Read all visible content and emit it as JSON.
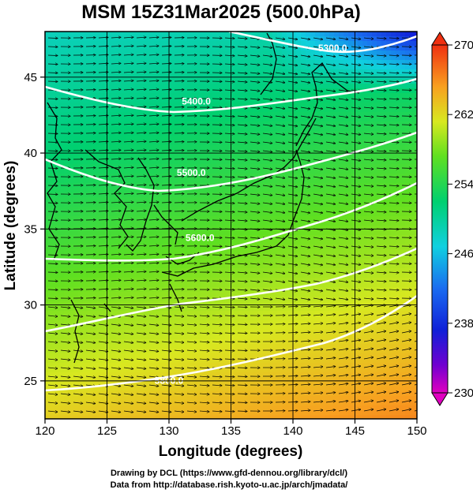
{
  "title": "MSM 15Z31Mar2025 (500.0hPa)",
  "axes": {
    "xlabel": "Longitude (degrees)",
    "ylabel": "Latitude  (degrees)",
    "xlim": [
      120,
      150
    ],
    "ylim": [
      22.5,
      48
    ],
    "xticks": [
      120,
      125,
      130,
      135,
      140,
      145,
      150
    ],
    "yticks": [
      25,
      30,
      35,
      40,
      45
    ]
  },
  "colorbar": {
    "min": 230,
    "max": 270,
    "labels": [
      270,
      262,
      254,
      246,
      238,
      230
    ]
  },
  "contours": [
    {
      "label": "5300.0",
      "label_lon": 143.2,
      "label_lat": 46.7
    },
    {
      "label": "5400.0",
      "label_lon": 132.2,
      "label_lat": 43.2
    },
    {
      "label": "5500.0",
      "label_lon": 131.8,
      "label_lat": 38.5
    },
    {
      "label": "5600.0",
      "label_lon": 132.5,
      "label_lat": 34.2
    },
    {
      "label": "5800.0",
      "label_lon": 130.0,
      "label_lat": 24.8
    }
  ],
  "credits": {
    "line1": "Drawing by DCL (https://www.gfd-dennou.org/library/dcl/)",
    "line2": "Data from http://database.rish.kyoto-u.ac.jp/arch/jmadata/"
  },
  "colors": {
    "contour": "#ffffff",
    "coastline": "#000000",
    "arrows": "#000000"
  }
}
